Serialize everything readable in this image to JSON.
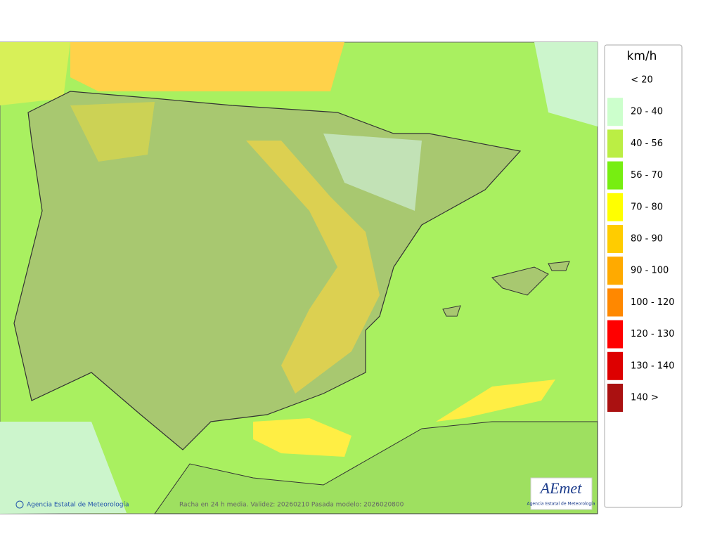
{
  "legend": {
    "unit": "km/h",
    "items": [
      {
        "label": "< 20"
      },
      {
        "label": "20 - 40",
        "color": "#ccffcc"
      },
      {
        "label": "40 - 56",
        "color": "#bbee44"
      },
      {
        "label": "56 - 70",
        "color": "#77ee11"
      },
      {
        "label": "70 - 80",
        "color": "#ffff00"
      },
      {
        "label": "80 - 90",
        "color": "#ffcc00"
      },
      {
        "label": "90 - 100",
        "color": "#ffaa00"
      },
      {
        "label": "100 - 120",
        "color": "#ff8800"
      },
      {
        "label": "120 - 130",
        "color": "#ff0000"
      },
      {
        "label": "130 - 140",
        "color": "#dd0000"
      },
      {
        "label": "140 >",
        "color": "#aa1111"
      }
    ]
  },
  "map": {
    "credit": "Agencia Estatal de Meteorología",
    "caption": "Racha en 24 h media. Validez: 20260210 Pasada modelo: 2026020800",
    "logo": {
      "name": "AEmet",
      "subtitle": "Agencia Estatal de Meteorología"
    }
  }
}
